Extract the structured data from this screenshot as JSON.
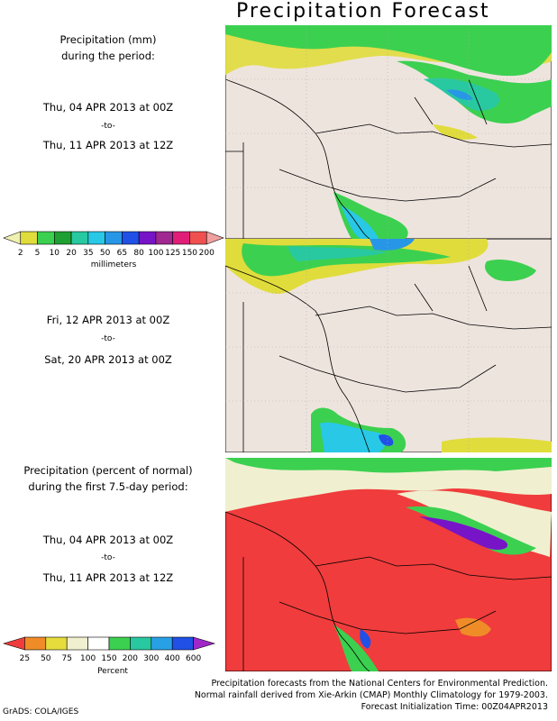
{
  "title": "Precipitation Forecast",
  "panel1": {
    "line1": "Precipitation (mm)",
    "line2": "during the period:",
    "from": "Thu, 04 APR 2013 at 00Z",
    "to_word": "-to-",
    "until": "Thu, 11 APR 2013 at 12Z"
  },
  "panel2": {
    "from": "Fri, 12 APR 2013 at 00Z",
    "to_word": "-to-",
    "until": "Sat, 20 APR 2013 at 00Z"
  },
  "panel3": {
    "line1": "Precipitation (percent of normal)",
    "line2": "during the first 7.5-day period:",
    "from": "Thu, 04 APR 2013 at 00Z",
    "to_word": "-to-",
    "until": "Thu, 11 APR 2013 at 12Z"
  },
  "mm_scale": {
    "unit": "millimeters",
    "ticks": [
      "2",
      "5",
      "10",
      "20",
      "35",
      "50",
      "65",
      "80",
      "100",
      "125",
      "150",
      "200"
    ],
    "colors": [
      "#f0f0b0",
      "#e0dc3c",
      "#3cd050",
      "#1ea032",
      "#28c8a0",
      "#28c8e6",
      "#2896e6",
      "#2050e6",
      "#7814c8",
      "#a02890",
      "#e01e78",
      "#f05050",
      "#f0a0a0"
    ]
  },
  "pct_scale": {
    "unit": "Percent",
    "ticks": [
      "25",
      "50",
      "75",
      "100",
      "150",
      "200",
      "300",
      "400",
      "600"
    ],
    "colors": [
      "#f03c3c",
      "#f08c28",
      "#e6dc3c",
      "#f0f0d0",
      "#ffffff",
      "#3cd050",
      "#28c8a0",
      "#28a0e6",
      "#2050e6",
      "#a028c8"
    ]
  },
  "footer": {
    "line1": "Precipitation forecasts from the National Centers for Environmental Prediction.",
    "line2": "Normal rainfall derived from Xie-Arkin (CMAP) Monthly Climatology for 1979-2003.",
    "line3": "Forecast Initialization Time: 00Z04APR2013"
  },
  "credit": "GrADS: COLA/IGES",
  "colors": {
    "land": "#eee4de",
    "red": "#f03c3c"
  }
}
